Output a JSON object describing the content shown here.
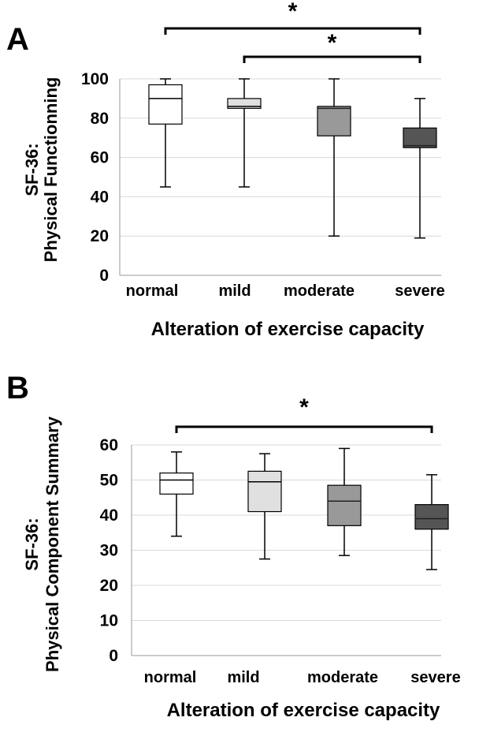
{
  "panels": [
    {
      "label": "A"
    },
    {
      "label": "B"
    }
  ],
  "chart_data": [
    {
      "type": "box",
      "panel": "A",
      "categories": [
        "normal",
        "mild",
        "moderate",
        "severe"
      ],
      "ylabel_lines": [
        "SF-36:",
        "Physical Functionning"
      ],
      "xlabel": "Alteration of exercise capacity",
      "ylim": [
        0,
        100
      ],
      "yticks": [
        0,
        20,
        40,
        60,
        80,
        100
      ],
      "grid": true,
      "colors": [
        "#ffffff",
        "#e0e0e0",
        "#999999",
        "#555555"
      ],
      "boxes": [
        {
          "min": 45,
          "q1": 77,
          "median": 90,
          "q3": 97,
          "max": 100
        },
        {
          "min": 45,
          "q1": 85,
          "median": 86,
          "q3": 90,
          "max": 100
        },
        {
          "min": 20,
          "q1": 71,
          "median": 85,
          "q3": 86,
          "max": 100
        },
        {
          "min": 19,
          "q1": 65,
          "median": 66,
          "q3": 75,
          "max": 90
        }
      ],
      "significance": [
        {
          "from": 0,
          "to": 3,
          "label": "*"
        },
        {
          "from": 1,
          "to": 3,
          "label": "*"
        }
      ]
    },
    {
      "type": "box",
      "panel": "B",
      "categories": [
        "normal",
        "mild",
        "moderate",
        "severe"
      ],
      "ylabel_lines": [
        "SF-36:",
        "Physical Component Summary"
      ],
      "xlabel": "Alteration of exercise capacity",
      "ylim": [
        0,
        60
      ],
      "yticks": [
        0,
        10,
        20,
        30,
        40,
        50,
        60
      ],
      "grid": true,
      "colors": [
        "#ffffff",
        "#e0e0e0",
        "#999999",
        "#555555"
      ],
      "boxes": [
        {
          "min": 34,
          "q1": 46,
          "median": 50,
          "q3": 52,
          "max": 58
        },
        {
          "min": 27.5,
          "q1": 41,
          "median": 49.5,
          "q3": 52.5,
          "max": 57.5
        },
        {
          "min": 28.5,
          "q1": 37,
          "median": 44,
          "q3": 48.5,
          "max": 59
        },
        {
          "min": 24.5,
          "q1": 36,
          "median": 39,
          "q3": 43,
          "max": 51.5
        }
      ],
      "significance": [
        {
          "from": 0,
          "to": 3,
          "label": "*"
        }
      ]
    }
  ]
}
